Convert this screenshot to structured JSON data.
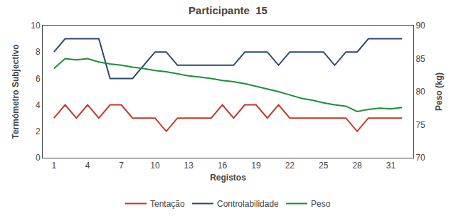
{
  "chart_data": {
    "type": "line",
    "title": "Participante  15",
    "xlabel": "Registos",
    "ylabel": "Termómetro Subjectivo",
    "y2label": "Peso (kg)",
    "x": [
      1,
      2,
      3,
      4,
      5,
      6,
      7,
      8,
      9,
      10,
      11,
      12,
      13,
      14,
      15,
      16,
      17,
      18,
      19,
      20,
      21,
      22,
      23,
      24,
      25,
      26,
      27,
      28,
      29,
      30,
      31,
      32
    ],
    "series": [
      {
        "name": "Tentação",
        "color": "#c0392b",
        "values": [
          3,
          4,
          3,
          4,
          3,
          4,
          4,
          3,
          3,
          3,
          2,
          3,
          3,
          3,
          3,
          4,
          3,
          4,
          4,
          3,
          4,
          3,
          3,
          3,
          3,
          3,
          3,
          2,
          3,
          3,
          3,
          3
        ]
      },
      {
        "name": "Controlabilidade",
        "color": "#2c4770",
        "values": [
          8,
          9,
          9,
          9,
          9,
          6,
          6,
          6,
          7,
          8,
          8,
          7,
          7,
          7,
          7,
          7,
          7,
          8,
          8,
          8,
          7,
          8,
          8,
          8,
          8,
          7,
          8,
          8,
          9,
          9,
          9,
          9
        ]
      },
      {
        "name": "Peso",
        "color": "#1e8c3a",
        "axis": "y2",
        "values": [
          83.5,
          85.0,
          84.8,
          85.0,
          84.5,
          84.2,
          84.0,
          83.7,
          83.5,
          83.2,
          83.0,
          82.7,
          82.4,
          82.2,
          82.0,
          81.7,
          81.5,
          81.2,
          80.8,
          80.4,
          80.0,
          79.5,
          79.0,
          78.7,
          78.3,
          78.0,
          77.8,
          77.0,
          77.3,
          77.5,
          77.4,
          77.6
        ]
      }
    ],
    "xlim": [
      0,
      33
    ],
    "xticks": [
      1,
      4,
      7,
      10,
      13,
      16,
      19,
      22,
      25,
      28,
      31
    ],
    "ylim": [
      0,
      10
    ],
    "yticks": [
      0,
      2,
      4,
      6,
      8,
      10
    ],
    "y2lim": [
      70,
      90
    ],
    "y2ticks": [
      70,
      75,
      80,
      85,
      90
    ],
    "grid": false,
    "legend": "bottom"
  }
}
